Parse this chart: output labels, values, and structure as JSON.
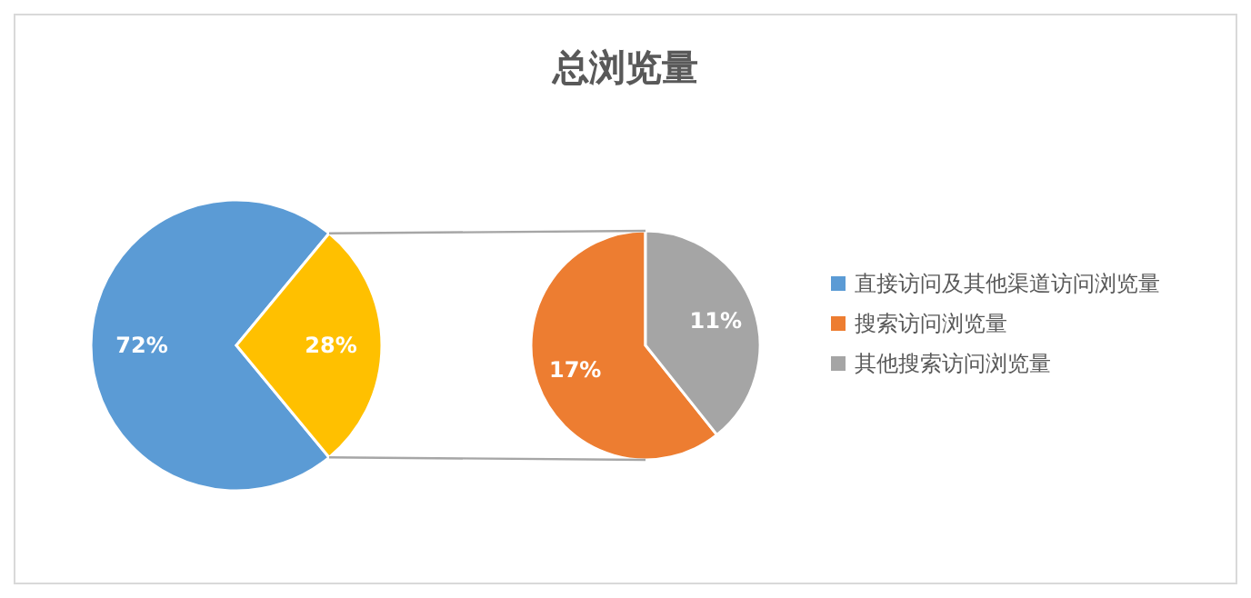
{
  "chart_data": [
    {
      "type": "pie",
      "categories": [
        "直接访问及其他渠道访问浏览量",
        null
      ],
      "values": [
        72,
        28
      ],
      "colors": [
        "#5b9bd5",
        "#ffc000"
      ],
      "value_labels": [
        "72%",
        "28%"
      ],
      "legend": "right"
    },
    {
      "type": "pie",
      "title": "总浏览量",
      "categories": [
        "搜索访问浏览量",
        "其他搜索访问浏览量"
      ],
      "values": [
        17,
        11
      ],
      "colors": [
        "#ed7d31",
        "#a5a5a5"
      ],
      "value_labels": [
        "17%",
        "11%"
      ],
      "legend": "right"
    }
  ]
}
